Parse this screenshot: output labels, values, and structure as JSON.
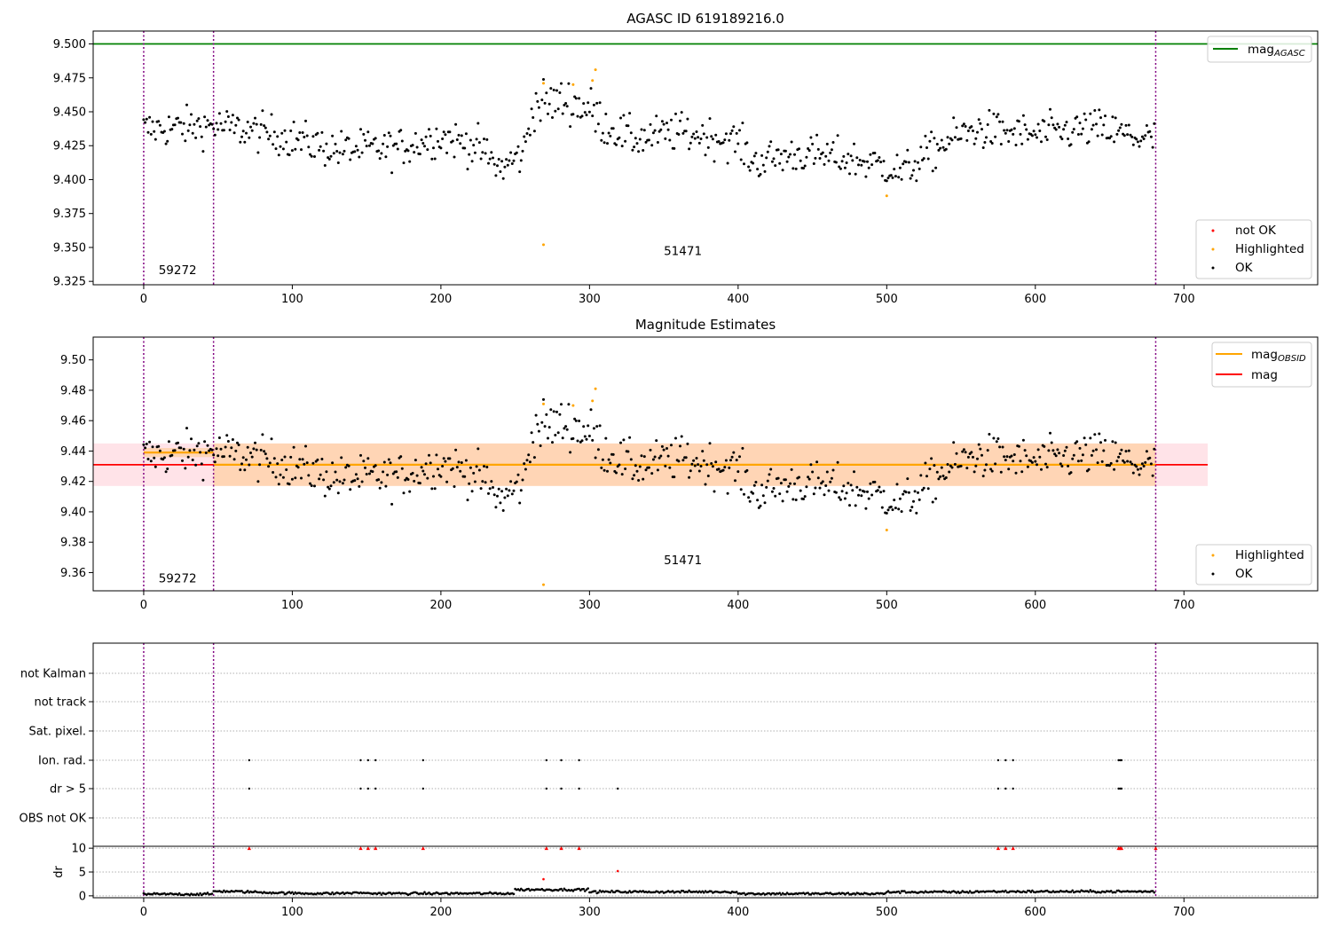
{
  "chart_data": [
    {
      "type": "scatter",
      "title": "AGASC ID 619189216.0",
      "xlim": [
        -34,
        790
      ],
      "ylim": [
        9.3225,
        9.5095
      ],
      "xticks": [
        "0",
        "100",
        "200",
        "300",
        "400",
        "500",
        "600",
        "700"
      ],
      "yticks": [
        "9.325",
        "9.350",
        "9.375",
        "9.400",
        "9.425",
        "9.450",
        "9.475",
        "9.500"
      ],
      "mag_agasc": 9.5,
      "obsid_boundaries": [
        0,
        47,
        681
      ],
      "obsid_labels": [
        {
          "text": "59272",
          "x": 10,
          "y": 9.3305
        },
        {
          "text": "51471",
          "x": 350,
          "y": 9.3445
        }
      ],
      "legend_top": [
        {
          "label": "mag",
          "sub": "AGASC",
          "color": "#008000"
        }
      ],
      "legend_bottom": [
        {
          "label": "not OK",
          "color": "#ff0000"
        },
        {
          "label": "Highlighted",
          "color": "#ffa500"
        },
        {
          "label": "OK",
          "color": "#000000"
        }
      ],
      "highlighted_points": [
        [
          269,
          9.471
        ],
        [
          289,
          9.47
        ],
        [
          302,
          9.473
        ],
        [
          304,
          9.481
        ],
        [
          269,
          9.352
        ],
        [
          500,
          9.388
        ]
      ]
    },
    {
      "type": "scatter",
      "title": "Magnitude Estimates",
      "xlim": [
        -34,
        790
      ],
      "ylim": [
        9.348,
        9.515
      ],
      "xticks": [
        "0",
        "100",
        "200",
        "300",
        "400",
        "500",
        "600",
        "700"
      ],
      "yticks": [
        "9.36",
        "9.38",
        "9.40",
        "9.42",
        "9.44",
        "9.46",
        "9.48",
        "9.50"
      ],
      "mag": 9.431,
      "mag_band": [
        9.417,
        9.445
      ],
      "mag_obsid": [
        {
          "x0": 0,
          "x1": 47,
          "mag": 9.439,
          "lo": 9.436,
          "hi": 9.442
        },
        {
          "x0": 47,
          "x1": 681,
          "mag": 9.431,
          "lo": 9.417,
          "hi": 9.445
        }
      ],
      "obsid_boundaries": [
        0,
        47,
        681
      ],
      "obsid_labels": [
        {
          "text": "59272",
          "x": 10,
          "y": 9.3535
        },
        {
          "text": "51471",
          "x": 350,
          "y": 9.3655
        }
      ],
      "legend_top": [
        {
          "label": "mag",
          "sub": "OBSID",
          "color": "#ffa500"
        },
        {
          "label": "mag",
          "sub": "",
          "color": "#ff0000"
        }
      ],
      "legend_bottom": [
        {
          "label": "Highlighted",
          "color": "#ffa500"
        },
        {
          "label": "OK",
          "color": "#000000"
        }
      ],
      "highlighted_points": [
        [
          269,
          9.471
        ],
        [
          289,
          9.47
        ],
        [
          302,
          9.473
        ],
        [
          304,
          9.481
        ],
        [
          269,
          9.352
        ],
        [
          500,
          9.388
        ]
      ]
    },
    {
      "type": "scatter",
      "title": "",
      "xlim": [
        -34,
        790
      ],
      "xticks": [
        "0",
        "100",
        "200",
        "300",
        "400",
        "500",
        "600",
        "700"
      ],
      "flag_categories": [
        "not Kalman",
        "not track",
        "Sat. pixel.",
        "Ion. rad.",
        "dr > 5",
        "OBS not OK"
      ],
      "ion_rad_x": [
        71,
        146,
        151,
        156,
        188,
        271,
        281,
        293,
        575,
        580,
        585,
        656,
        657,
        658
      ],
      "dr5_x": [
        71,
        146,
        151,
        156,
        188,
        271,
        281,
        293,
        319,
        575,
        580,
        585,
        656,
        657,
        658
      ],
      "obsid_boundaries": [
        0,
        47,
        681
      ]
    },
    {
      "type": "scatter",
      "title": "",
      "ylabel": "dr",
      "xlim": [
        -34,
        790
      ],
      "ylim": [
        -0.4,
        10.4
      ],
      "xticks": [
        "0",
        "100",
        "200",
        "300",
        "400",
        "500",
        "600",
        "700"
      ],
      "yticks": [
        "0",
        "5",
        "10"
      ],
      "clipped_x": [
        71,
        146,
        151,
        156,
        188,
        271,
        281,
        293,
        575,
        580,
        585,
        656,
        657,
        658,
        681
      ],
      "outliers": [
        [
          269,
          3.5
        ],
        [
          319,
          5.2
        ]
      ],
      "obsid_boundaries": [
        0,
        47,
        681
      ]
    }
  ]
}
